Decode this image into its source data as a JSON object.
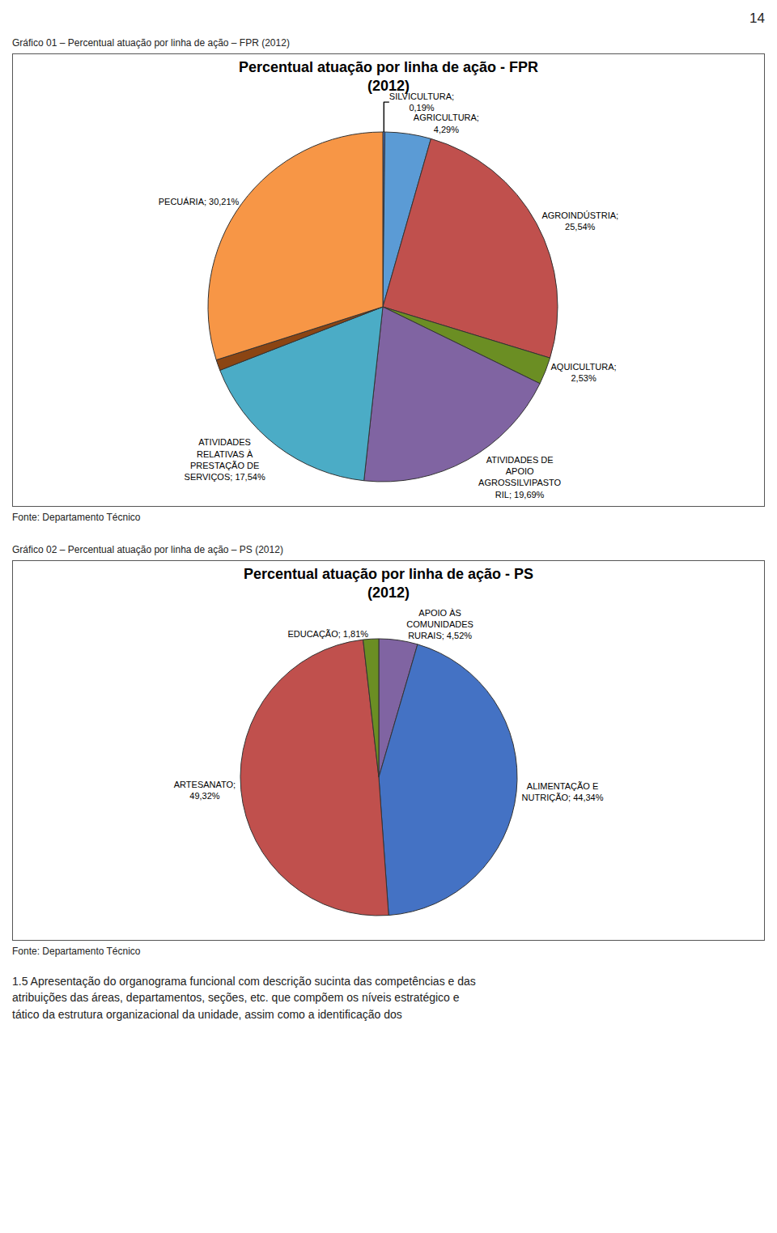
{
  "page_number": "14",
  "chart_data": [
    {
      "type": "pie",
      "caption": "Gráfico 01 – Percentual atuação por linha de ação – FPR (2012)",
      "title": "Percentual atuação por linha de ação - FPR\n(2012)",
      "values": [
        0.19,
        4.29,
        25.54,
        2.53,
        19.69,
        17.54,
        1.01,
        30.21
      ],
      "value_labels": [
        "SILVICULTURA;\n0,19%",
        "AGRICULTURA;\n4,29%",
        "AGROINDÚSTRIA;\n25,54%",
        "AQUICULTURA;\n2,53%",
        "ATIVIDADES DE\nAPOIO\nAGROSSILVIPASTO\nRIL; 19,69%",
        "ATIVIDADES\nRELATIVAS À\nPRESTAÇÃO DE\nSERVIÇOS; 17,54%",
        null,
        "PECUÁRIA; 30,21%"
      ],
      "colors": [
        "#4472C4",
        "#5B9BD5",
        "#C0504D",
        "#6B8E23",
        "#8064A2",
        "#4BACC6",
        "#8B4513",
        "#F79646"
      ],
      "data_labels": true,
      "source": "Fonte: Departamento Técnico"
    },
    {
      "type": "pie",
      "caption": "Gráfico 02 – Percentual atuação por linha de ação – PS (2012)",
      "title": "Percentual atuação por linha de ação - PS\n(2012)",
      "values": [
        4.52,
        44.34,
        49.32,
        1.81
      ],
      "value_labels": [
        "APOIO ÀS\nCOMUNIDADES\nRURAIS; 4,52%",
        "ALIMENTAÇÃO E\nNUTRIÇÃO; 44,34%",
        "ARTESANATO;\n49,32%",
        "EDUCAÇÃO; 1,81%"
      ],
      "colors": [
        "#8064A2",
        "#4472C4",
        "#C0504D",
        "#6B8E23"
      ],
      "data_labels": true,
      "source": "Fonte: Departamento Técnico"
    }
  ],
  "footer_text": "1.5 Apresentação do organograma funcional com descrição sucinta das competências e das\natribuições das áreas, departamentos, seções, etc. que compõem os níveis estratégico e\ntático da estrutura organizacional da unidade, assim como a identificação dos"
}
